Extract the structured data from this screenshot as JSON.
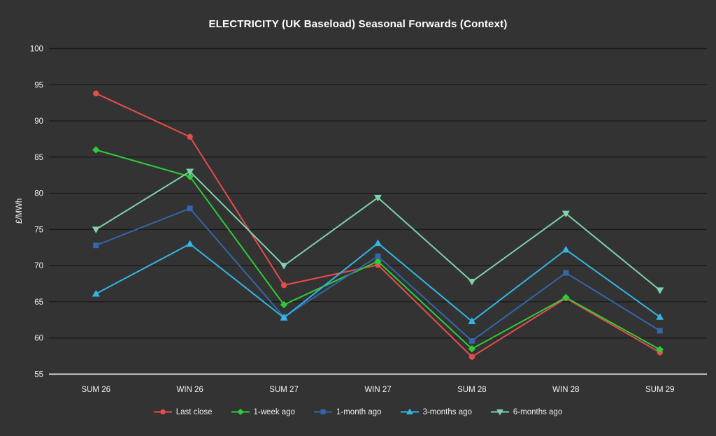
{
  "chart_data": {
    "type": "line",
    "title": "ELECTRICITY (UK Baseload) Seasonal Forwards (Context)",
    "xlabel": "",
    "ylabel": "£/MWh",
    "ylim": [
      55,
      100
    ],
    "yticks": [
      100,
      95,
      90,
      85,
      80,
      75,
      70,
      65,
      60,
      55
    ],
    "grid": true,
    "legend_position": "bottom",
    "categories": [
      "SUM 26",
      "WIN 26",
      "SUM 27",
      "WIN 27",
      "SUM 28",
      "WIN 28",
      "SUM 29"
    ],
    "series": [
      {
        "name": "Last close",
        "marker": "circle",
        "color": "#e64c4c",
        "values": [
          93.8,
          87.8,
          67.3,
          70.1,
          57.4,
          65.5,
          58.0
        ]
      },
      {
        "name": "1-week ago",
        "marker": "diamond",
        "color": "#2ecc38",
        "values": [
          86.0,
          82.3,
          64.6,
          70.6,
          58.5,
          65.6,
          58.4
        ]
      },
      {
        "name": "1-month ago",
        "marker": "square",
        "color": "#3366aa",
        "values": [
          72.8,
          77.9,
          62.9,
          71.3,
          59.6,
          69.0,
          61.0
        ]
      },
      {
        "name": "3-months ago",
        "marker": "triangle-up",
        "color": "#34b6e4",
        "values": [
          66.1,
          73.0,
          62.8,
          73.1,
          62.3,
          72.2,
          62.9
        ]
      },
      {
        "name": "6-months ago",
        "marker": "triangle-down",
        "color": "#7dd2ab",
        "values": [
          75.0,
          83.0,
          70.0,
          79.4,
          67.8,
          77.2,
          66.6
        ]
      }
    ]
  },
  "colors": {
    "background": "#333333",
    "gridline": "#1b1b1b",
    "axis_line": "#d9d9d9",
    "title_text": "#ffffff",
    "tick_text": "#f0f0f0",
    "legend_text": "#ededed"
  }
}
